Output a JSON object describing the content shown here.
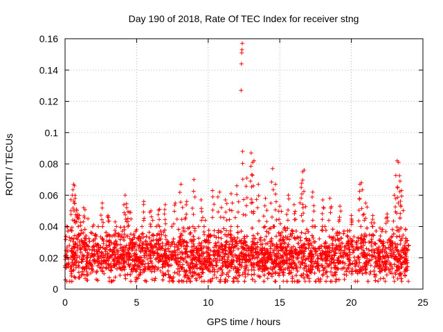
{
  "chart_data": {
    "type": "scatter",
    "title": "Day 190 of 2018, Rate Of TEC Index for receiver stng",
    "xlabel": "GPS time / hours",
    "ylabel": "ROTI / TECUs",
    "xlim": [
      0,
      25
    ],
    "ylim": [
      0,
      0.16
    ],
    "xticks": [
      0,
      5,
      10,
      15,
      20,
      25
    ],
    "xtick_labels": [
      "0",
      "5",
      "10",
      "15",
      "20",
      "25"
    ],
    "yticks": [
      0,
      0.02,
      0.04,
      0.06,
      0.08,
      0.1,
      0.12,
      0.14,
      0.16
    ],
    "ytick_labels": [
      "0",
      "0.02",
      "0.04",
      "0.06",
      "0.08",
      "0.1",
      "0.12",
      "0.14",
      "0.16"
    ],
    "grid": true,
    "marker": "+",
    "series_color": "#ff0000",
    "data_range_hours": [
      0,
      24
    ],
    "baseline_band": [
      0.005,
      0.04
    ],
    "typical_value": 0.02,
    "series": [
      {
        "name": "ROTI",
        "x": [
          0.1,
          0.3,
          0.5,
          0.6,
          0.65,
          0.7,
          0.8,
          1.0,
          1.3,
          1.6,
          2.0,
          2.6,
          3.0,
          3.5,
          4.2,
          4.3,
          4.5,
          5.0,
          5.5,
          6.0,
          6.6,
          7.0,
          7.7,
          8.1,
          8.5,
          9.0,
          9.5,
          9.8,
          10.3,
          10.8,
          11.2,
          11.6,
          12.0,
          12.3,
          12.32,
          12.34,
          12.36,
          12.38,
          12.4,
          12.7,
          13.0,
          13.1,
          13.2,
          13.5,
          14.0,
          14.5,
          14.7,
          15.0,
          15.6,
          16.0,
          16.5,
          16.6,
          16.7,
          17.3,
          18.0,
          18.5,
          19.2,
          20.0,
          20.6,
          20.7,
          21.0,
          21.5,
          22.0,
          22.5,
          23.0,
          23.2,
          23.3,
          23.4,
          23.5,
          23.8
        ],
        "y": [
          0.04,
          0.033,
          0.06,
          0.067,
          0.066,
          0.058,
          0.051,
          0.047,
          0.052,
          0.045,
          0.041,
          0.055,
          0.047,
          0.043,
          0.06,
          0.052,
          0.049,
          0.038,
          0.056,
          0.05,
          0.051,
          0.054,
          0.055,
          0.067,
          0.056,
          0.07,
          0.057,
          0.044,
          0.063,
          0.062,
          0.057,
          0.061,
          0.066,
          0.127,
          0.144,
          0.151,
          0.153,
          0.157,
          0.088,
          0.071,
          0.087,
          0.081,
          0.082,
          0.067,
          0.058,
          0.077,
          0.067,
          0.053,
          0.06,
          0.054,
          0.065,
          0.075,
          0.076,
          0.062,
          0.057,
          0.058,
          0.053,
          0.047,
          0.067,
          0.068,
          0.055,
          0.047,
          0.039,
          0.048,
          0.06,
          0.082,
          0.081,
          0.069,
          0.063,
          0.038
        ]
      }
    ]
  }
}
